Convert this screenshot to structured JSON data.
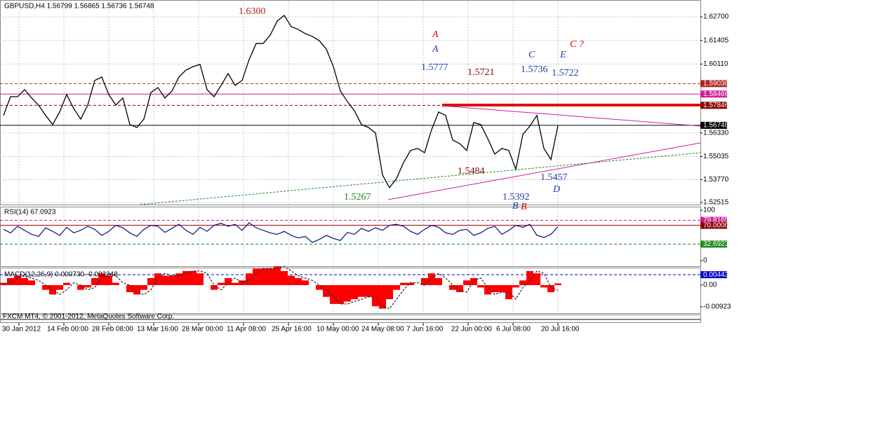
{
  "chart_data": [
    {
      "type": "line",
      "title": "GBPUSD,H4  1.56799 1.56865 1.56736 1.56748",
      "series": [
        {
          "name": "GBPUSD",
          "color": "#000000",
          "values": [
            1.5729,
            1.5832,
            1.5832,
            1.5871,
            1.5825,
            1.5786,
            1.5729,
            1.5679,
            1.5748,
            1.5844,
            1.5767,
            1.5709,
            1.5786,
            1.5921,
            1.594,
            1.5844,
            1.5786,
            1.5825,
            1.5679,
            1.5663,
            1.5709,
            1.5855,
            1.5882,
            1.5825,
            1.5863,
            1.594,
            1.5978,
            1.5997,
            1.6009,
            1.5871,
            1.5832,
            1.5894,
            1.5959,
            1.5894,
            1.5921,
            1.6036,
            1.6124,
            1.6124,
            1.617,
            1.6247,
            1.6278,
            1.6216,
            1.6201,
            1.6178,
            1.6163,
            1.6139,
            1.6093,
            1.5997,
            1.5863,
            1.5805,
            1.5755,
            1.5679,
            1.5663,
            1.5633,
            1.5402,
            1.5333,
            1.5383,
            1.5471,
            1.5537,
            1.5548,
            1.5525,
            1.5652,
            1.5748,
            1.5729,
            1.5594,
            1.5575,
            1.5537,
            1.569,
            1.5679,
            1.5602,
            1.5517,
            1.5548,
            1.5537,
            1.5433,
            1.5625,
            1.5671,
            1.5729,
            1.5548,
            1.5487,
            1.5674
          ]
        }
      ],
      "ylim": [
        1.524,
        1.6355
      ],
      "yticks": [
        {
          "value": 1.627,
          "label": "1.62700"
        },
        {
          "value": 1.61405,
          "label": "1.61405"
        },
        {
          "value": 1.6011,
          "label": "1.60110"
        },
        {
          "value": 1.5633,
          "label": "1.56330"
        },
        {
          "value": 1.55035,
          "label": "1.55035"
        },
        {
          "value": 1.5377,
          "label": "1.53770"
        },
        {
          "value": 1.52515,
          "label": "1.52515"
        }
      ],
      "grid": true,
      "levels": [
        {
          "value": 1.59038,
          "label": "1.59038",
          "color": "#b22222",
          "dashed": true
        },
        {
          "value": 1.58466,
          "label": "1.58466",
          "color": "#cc1f9a",
          "dashed": false
        },
        {
          "value": 1.57846,
          "label": "1.57846",
          "color": "#8b0000",
          "dashed": true
        },
        {
          "value": 1.56748,
          "label": "1.56748",
          "color": "#000000",
          "dashed": false
        }
      ],
      "annotations": [
        {
          "text": "1.6300",
          "color": "#b22222"
        },
        {
          "text": "A",
          "color": "#e00000"
        },
        {
          "text": "A",
          "color": "#1e3fa0"
        },
        {
          "text": "1.5777",
          "color": "#1e3fa0"
        },
        {
          "text": "1.5721",
          "color": "#8b0000"
        },
        {
          "text": "C",
          "color": "#1e3fa0"
        },
        {
          "text": "1.5736",
          "color": "#1e3fa0"
        },
        {
          "text": "E",
          "color": "#1e3fa0"
        },
        {
          "text": "C ?",
          "color": "#e00000"
        },
        {
          "text": "1.5722",
          "color": "#1e3fa0"
        },
        {
          "text": "1.5484",
          "color": "#8b0000"
        },
        {
          "text": "1.5457",
          "color": "#1e3fa0"
        },
        {
          "text": "D",
          "color": "#1e3fa0"
        },
        {
          "text": "1.5267",
          "color": "#1a8a1a"
        },
        {
          "text": "1.5392",
          "color": "#1e3fa0"
        },
        {
          "text": "B",
          "color": "#1e3fa0"
        },
        {
          "text": "B",
          "color": "#e00000"
        }
      ]
    },
    {
      "type": "line",
      "title": "RSI(14) 67.0923",
      "series": [
        {
          "name": "RSI",
          "color": "#1e1e8c",
          "values": [
            62,
            55,
            68,
            60,
            52,
            48,
            65,
            58,
            50,
            66,
            55,
            60,
            68,
            62,
            50,
            58,
            70,
            65,
            55,
            48,
            62,
            70,
            68,
            56,
            64,
            72,
            60,
            52,
            66,
            58,
            70,
            74,
            68,
            72,
            60,
            75,
            65,
            60,
            55,
            52,
            58,
            50,
            45,
            48,
            36,
            42,
            50,
            44,
            40,
            56,
            52,
            64,
            58,
            65,
            60,
            70,
            72,
            68,
            58,
            52,
            62,
            70,
            66,
            55,
            52,
            60,
            62,
            50,
            55,
            64,
            68,
            52,
            60,
            70,
            66,
            72,
            50,
            46,
            52,
            67.0923
          ]
        }
      ],
      "ylim": [
        -11.1,
        105.6
      ],
      "yticks": [
        100,
        0
      ],
      "levels": [
        {
          "value": 79.8165,
          "label": "79.8165",
          "color": "#cc1f9a",
          "dashed": true
        },
        {
          "value": 70,
          "label": "70.0000",
          "color": "#8b0000",
          "dashed": false
        },
        {
          "value": 32.6923,
          "label": "32.6923",
          "color": "#1a8a1a",
          "dashed": true
        }
      ]
    },
    {
      "type": "bar",
      "title": "MACD(12,26,9) 0.000730 -0.002248",
      "series": [
        {
          "name": "MACD",
          "color": "#ff0000",
          "values": [
            0.001,
            0.003,
            0.004,
            0.003,
            0.002,
            0,
            -0.002,
            -0.004,
            -0.002,
            0.001,
            0,
            -0.002,
            -0.001,
            0.003,
            0.005,
            0.004,
            0.001,
            0,
            -0.003,
            -0.004,
            -0.002,
            0.003,
            0.005,
            0.004,
            0.004,
            0.005,
            0.006,
            0.006,
            0.005,
            0,
            -0.002,
            0.001,
            0.003,
            0.001,
            0.002,
            0.005,
            0.007,
            0.007,
            0.007,
            0.008,
            0.006,
            0.004,
            0.003,
            0.002,
            0,
            -0.002,
            -0.005,
            -0.008,
            -0.008,
            -0.007,
            -0.006,
            -0.005,
            -0.005,
            -0.009,
            -0.01,
            -0.006,
            -0.002,
            0.001,
            0.001,
            0,
            0.003,
            0.005,
            0.003,
            0,
            -0.002,
            -0.003,
            0.002,
            0.003,
            -0.001,
            -0.004,
            -0.003,
            -0.003,
            -0.006,
            -0.001,
            0.002,
            0.006,
            0.005,
            -0.001,
            -0.003,
            0.00073
          ]
        },
        {
          "name": "Signal",
          "color": "#333333",
          "values": [
            0,
            0.001,
            0.003,
            0.004,
            0.003,
            0.002,
            0,
            -0.002,
            -0.004,
            -0.002,
            0.001,
            0,
            -0.002,
            -0.001,
            0.003,
            0.005,
            0.004,
            0.001,
            0,
            -0.003,
            -0.004,
            -0.002,
            0.003,
            0.005,
            0.004,
            0.004,
            0.005,
            0.006,
            0.006,
            0.005,
            0,
            -0.002,
            0.001,
            0.003,
            0.001,
            0.002,
            0.005,
            0.007,
            0.007,
            0.007,
            0.008,
            0.006,
            0.004,
            0.003,
            0.002,
            0,
            -0.002,
            -0.005,
            -0.008,
            -0.008,
            -0.007,
            -0.006,
            -0.005,
            -0.005,
            -0.009,
            -0.01,
            -0.006,
            -0.002,
            0.001,
            0.001,
            0,
            0.003,
            0.005,
            0.003,
            0,
            -0.002,
            -0.003,
            0.002,
            0.003,
            -0.001,
            -0.004,
            -0.003,
            -0.003,
            -0.006,
            -0.001,
            0.002,
            0.006,
            0.005,
            -0.001,
            -0.002248
          ]
        }
      ],
      "ylim": [
        -0.0119,
        0.00715
      ],
      "yticks": [
        {
          "value": 0,
          "label": "0.00"
        },
        {
          "value": -0.00923,
          "label": "-0.00923"
        }
      ],
      "levels": [
        {
          "value": 0.00443,
          "label": "0.00443",
          "color": "#0000cc",
          "dashed": true
        }
      ]
    }
  ],
  "time_axis": [
    "30 Jan 2012",
    "14 Feb 00:00",
    "28 Feb 08:00",
    "13 Mar 16:00",
    "28 Mar 00:00",
    "11 Apr 08:00",
    "25 Apr 16:00",
    "10 May 00:00",
    "24 May 08:00",
    "7 Jun 16:00",
    "22 Jun 00:00",
    "6 Jul 08:00",
    "20 Jul 16:00"
  ],
  "footer": "FXCM MT4, © 2001-2012, MetaQuotes Software Corp."
}
